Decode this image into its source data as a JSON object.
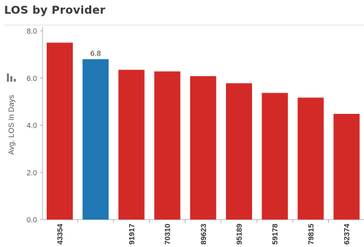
{
  "page": {
    "title": "LOS by Provider"
  },
  "toolbar": {
    "icon": "bar-chart-icon"
  },
  "chart_data": {
    "type": "bar",
    "title": "LOS by Provider",
    "xlabel": "",
    "ylabel": "Avg. LOS In Days",
    "ylim": [
      0,
      8
    ],
    "yticks": [
      0,
      2,
      4,
      6,
      8
    ],
    "ytick_labels": [
      "0.0",
      "2.0",
      "4.0",
      "6.0",
      "8.0"
    ],
    "categories": [
      "43354",
      "",
      "91917",
      "70310",
      "89623",
      "95189",
      "59178",
      "79815",
      "62374"
    ],
    "values": [
      7.5,
      6.8,
      6.35,
      6.28,
      6.08,
      5.78,
      5.37,
      5.17,
      4.48
    ],
    "highlight_index": 1,
    "data_labels": [
      {
        "index": 1,
        "text": "6.8"
      }
    ],
    "colors": {
      "bar": "#d32a27",
      "highlight": "#1f77b4",
      "axis": "#b0b0b0",
      "text": "#333333"
    },
    "grid": false
  }
}
